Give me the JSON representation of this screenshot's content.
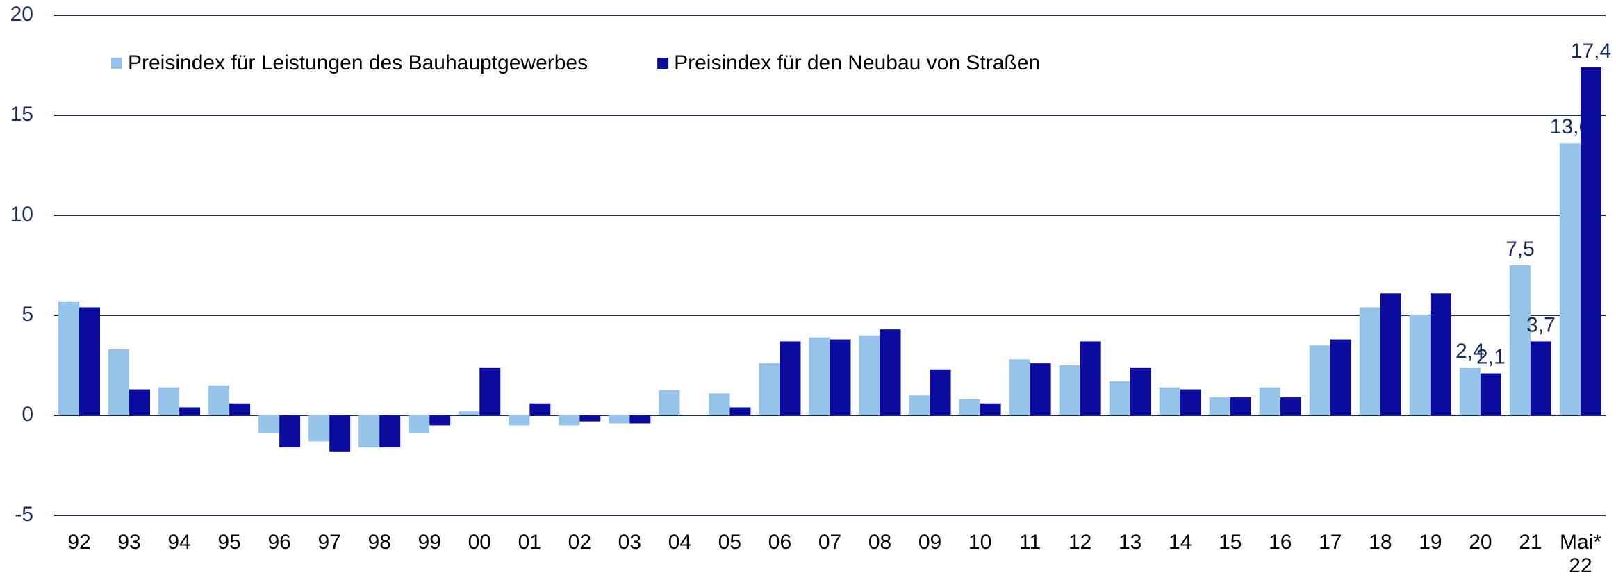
{
  "chart_data": {
    "type": "bar",
    "categories": [
      "92",
      "93",
      "94",
      "95",
      "96",
      "97",
      "98",
      "99",
      "00",
      "01",
      "02",
      "03",
      "04",
      "05",
      "06",
      "07",
      "08",
      "09",
      "10",
      "11",
      "12",
      "13",
      "14",
      "15",
      "16",
      "17",
      "18",
      "19",
      "20",
      "21",
      "Mai*\n22"
    ],
    "series": [
      {
        "name": "Preisindex für Leistungen des Bauhauptgewerbes",
        "color": "#95c3ea",
        "values": [
          5.7,
          3.3,
          1.4,
          1.5,
          -0.9,
          -1.3,
          -1.6,
          -0.9,
          0.2,
          -0.5,
          -0.5,
          -0.4,
          1.25,
          1.1,
          2.6,
          3.9,
          4.0,
          1.0,
          0.8,
          2.8,
          2.5,
          1.7,
          1.4,
          0.9,
          1.4,
          3.5,
          5.4,
          5.0,
          2.4,
          7.5,
          13.6
        ],
        "value_labels": [
          null,
          null,
          null,
          null,
          null,
          null,
          null,
          null,
          null,
          null,
          null,
          null,
          null,
          null,
          null,
          null,
          null,
          null,
          null,
          null,
          null,
          null,
          null,
          null,
          null,
          null,
          null,
          null,
          "2,4",
          "7,5",
          "13,6"
        ]
      },
      {
        "name": "Preisindex für den Neubau von Straßen",
        "color": "#0c0c9e",
        "values": [
          5.4,
          1.3,
          0.4,
          0.6,
          -1.6,
          -1.8,
          -1.6,
          -0.5,
          2.4,
          0.6,
          -0.3,
          -0.4,
          0,
          0.4,
          3.7,
          3.8,
          4.3,
          2.3,
          0.6,
          2.6,
          3.7,
          2.4,
          1.3,
          0.9,
          0.9,
          3.8,
          6.1,
          6.1,
          2.1,
          3.7,
          17.4
        ],
        "value_labels": [
          null,
          null,
          null,
          null,
          null,
          null,
          null,
          null,
          null,
          null,
          null,
          null,
          null,
          null,
          null,
          null,
          null,
          null,
          null,
          null,
          null,
          null,
          null,
          null,
          null,
          null,
          null,
          null,
          "2,1",
          "3,7",
          "17,4"
        ]
      }
    ],
    "ylim": [
      -5,
      20
    ],
    "yticks": [
      -5,
      0,
      5,
      10,
      15,
      20
    ],
    "grid": true
  }
}
